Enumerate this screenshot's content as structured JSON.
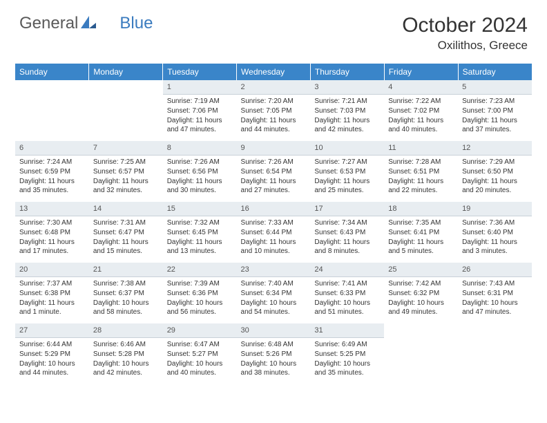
{
  "logo": {
    "part1": "General",
    "part2": "Blue"
  },
  "title": "October 2024",
  "location": "Oxilithos, Greece",
  "colors": {
    "header_bg": "#3a85c9",
    "header_text": "#ffffff",
    "daynum_bg": "#e8edf1",
    "daynum_border": "#c8d0d8",
    "body_text": "#333333",
    "logo_gray": "#5a5a5a",
    "logo_blue": "#3a7bbf"
  },
  "day_headers": [
    "Sunday",
    "Monday",
    "Tuesday",
    "Wednesday",
    "Thursday",
    "Friday",
    "Saturday"
  ],
  "weeks": [
    [
      null,
      null,
      {
        "n": "1",
        "sr": "7:19 AM",
        "ss": "7:06 PM",
        "dl": "11 hours and 47 minutes."
      },
      {
        "n": "2",
        "sr": "7:20 AM",
        "ss": "7:05 PM",
        "dl": "11 hours and 44 minutes."
      },
      {
        "n": "3",
        "sr": "7:21 AM",
        "ss": "7:03 PM",
        "dl": "11 hours and 42 minutes."
      },
      {
        "n": "4",
        "sr": "7:22 AM",
        "ss": "7:02 PM",
        "dl": "11 hours and 40 minutes."
      },
      {
        "n": "5",
        "sr": "7:23 AM",
        "ss": "7:00 PM",
        "dl": "11 hours and 37 minutes."
      }
    ],
    [
      {
        "n": "6",
        "sr": "7:24 AM",
        "ss": "6:59 PM",
        "dl": "11 hours and 35 minutes."
      },
      {
        "n": "7",
        "sr": "7:25 AM",
        "ss": "6:57 PM",
        "dl": "11 hours and 32 minutes."
      },
      {
        "n": "8",
        "sr": "7:26 AM",
        "ss": "6:56 PM",
        "dl": "11 hours and 30 minutes."
      },
      {
        "n": "9",
        "sr": "7:26 AM",
        "ss": "6:54 PM",
        "dl": "11 hours and 27 minutes."
      },
      {
        "n": "10",
        "sr": "7:27 AM",
        "ss": "6:53 PM",
        "dl": "11 hours and 25 minutes."
      },
      {
        "n": "11",
        "sr": "7:28 AM",
        "ss": "6:51 PM",
        "dl": "11 hours and 22 minutes."
      },
      {
        "n": "12",
        "sr": "7:29 AM",
        "ss": "6:50 PM",
        "dl": "11 hours and 20 minutes."
      }
    ],
    [
      {
        "n": "13",
        "sr": "7:30 AM",
        "ss": "6:48 PM",
        "dl": "11 hours and 17 minutes."
      },
      {
        "n": "14",
        "sr": "7:31 AM",
        "ss": "6:47 PM",
        "dl": "11 hours and 15 minutes."
      },
      {
        "n": "15",
        "sr": "7:32 AM",
        "ss": "6:45 PM",
        "dl": "11 hours and 13 minutes."
      },
      {
        "n": "16",
        "sr": "7:33 AM",
        "ss": "6:44 PM",
        "dl": "11 hours and 10 minutes."
      },
      {
        "n": "17",
        "sr": "7:34 AM",
        "ss": "6:43 PM",
        "dl": "11 hours and 8 minutes."
      },
      {
        "n": "18",
        "sr": "7:35 AM",
        "ss": "6:41 PM",
        "dl": "11 hours and 5 minutes."
      },
      {
        "n": "19",
        "sr": "7:36 AM",
        "ss": "6:40 PM",
        "dl": "11 hours and 3 minutes."
      }
    ],
    [
      {
        "n": "20",
        "sr": "7:37 AM",
        "ss": "6:38 PM",
        "dl": "11 hours and 1 minute."
      },
      {
        "n": "21",
        "sr": "7:38 AM",
        "ss": "6:37 PM",
        "dl": "10 hours and 58 minutes."
      },
      {
        "n": "22",
        "sr": "7:39 AM",
        "ss": "6:36 PM",
        "dl": "10 hours and 56 minutes."
      },
      {
        "n": "23",
        "sr": "7:40 AM",
        "ss": "6:34 PM",
        "dl": "10 hours and 54 minutes."
      },
      {
        "n": "24",
        "sr": "7:41 AM",
        "ss": "6:33 PM",
        "dl": "10 hours and 51 minutes."
      },
      {
        "n": "25",
        "sr": "7:42 AM",
        "ss": "6:32 PM",
        "dl": "10 hours and 49 minutes."
      },
      {
        "n": "26",
        "sr": "7:43 AM",
        "ss": "6:31 PM",
        "dl": "10 hours and 47 minutes."
      }
    ],
    [
      {
        "n": "27",
        "sr": "6:44 AM",
        "ss": "5:29 PM",
        "dl": "10 hours and 44 minutes."
      },
      {
        "n": "28",
        "sr": "6:46 AM",
        "ss": "5:28 PM",
        "dl": "10 hours and 42 minutes."
      },
      {
        "n": "29",
        "sr": "6:47 AM",
        "ss": "5:27 PM",
        "dl": "10 hours and 40 minutes."
      },
      {
        "n": "30",
        "sr": "6:48 AM",
        "ss": "5:26 PM",
        "dl": "10 hours and 38 minutes."
      },
      {
        "n": "31",
        "sr": "6:49 AM",
        "ss": "5:25 PM",
        "dl": "10 hours and 35 minutes."
      },
      null,
      null
    ]
  ],
  "labels": {
    "sunrise": "Sunrise:",
    "sunset": "Sunset:",
    "daylight": "Daylight:"
  }
}
